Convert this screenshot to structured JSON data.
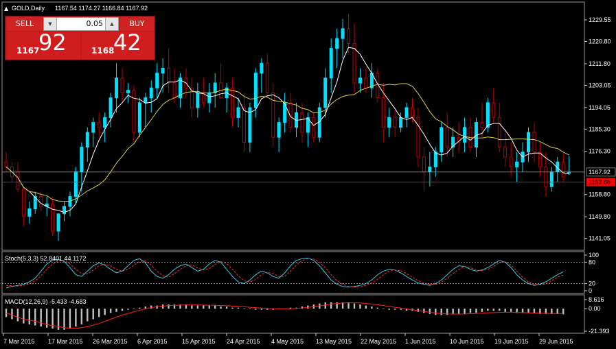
{
  "header": {
    "symbol": "GOLD,Daily",
    "ohlc": "1167.54 1174.27 1166.84 1167.92"
  },
  "trade_panel": {
    "sell_label": "SELL",
    "buy_label": "BUY",
    "lot": "0.05",
    "sell_price_small": "1167",
    "sell_price_big": "92",
    "buy_price_small": "1168",
    "buy_price_big": "42"
  },
  "colors": {
    "bull": "#00e0ff",
    "bear": "#c00000",
    "ma_fast": "#ffffff",
    "ma_slow": "#d8d048",
    "level": "#ff0000",
    "stoch_main": "#40c8e8",
    "stoch_signal": "#ff3030",
    "macd_hist": "#c0c0c0",
    "macd_signal": "#ff2020",
    "bid_line": "#a0a0a0"
  },
  "chart_data": [
    {
      "type": "candlestick",
      "panel": "price",
      "ylim": [
        1136.5,
        1236.5
      ],
      "y_ticks": [
        "1229.55",
        "1220.80",
        "1211.80",
        "1203.05",
        "1194.05",
        "1185.30",
        "1176.30",
        "1158.80",
        "1149.80",
        "1141.05"
      ],
      "x_ticks": [
        "7 Mar 2015",
        "17 Mar 2015",
        "26 Mar 2015",
        "6 Apr 2015",
        "15 Apr 2015",
        "24 Apr 2015",
        "4 May 2015",
        "13 May 2015",
        "22 May 2015",
        "1 Jun 2015",
        "10 Jun 2015",
        "19 Jun 2015",
        "29 Jun 2015"
      ],
      "current_price": "1167.92",
      "level_line": "1163.86",
      "ohlc": [
        [
          1172,
          1176,
          1168,
          1170
        ],
        [
          1170,
          1172,
          1164,
          1166
        ],
        [
          1168,
          1172,
          1160,
          1161
        ],
        [
          1161,
          1162,
          1146,
          1150
        ],
        [
          1150,
          1156,
          1147,
          1153
        ],
        [
          1153,
          1160,
          1151,
          1158
        ],
        [
          1158,
          1160,
          1152,
          1154
        ],
        [
          1154,
          1158,
          1150,
          1155
        ],
        [
          1155,
          1158,
          1142,
          1144
        ],
        [
          1144,
          1150,
          1140,
          1151
        ],
        [
          1151,
          1156,
          1148,
          1154
        ],
        [
          1154,
          1160,
          1150,
          1158
        ],
        [
          1158,
          1170,
          1155,
          1168
        ],
        [
          1168,
          1180,
          1160,
          1178
        ],
        [
          1178,
          1186,
          1172,
          1184
        ],
        [
          1184,
          1190,
          1178,
          1188
        ],
        [
          1188,
          1192,
          1182,
          1186
        ],
        [
          1186,
          1192,
          1180,
          1190
        ],
        [
          1190,
          1200,
          1186,
          1198
        ],
        [
          1198,
          1212,
          1192,
          1206
        ],
        [
          1206,
          1210,
          1196,
          1200
        ],
        [
          1200,
          1204,
          1196,
          1201
        ],
        [
          1201,
          1203,
          1180,
          1184
        ],
        [
          1184,
          1198,
          1182,
          1196
        ],
        [
          1196,
          1200,
          1186,
          1198
        ],
        [
          1198,
          1205,
          1192,
          1202
        ],
        [
          1202,
          1212,
          1198,
          1208
        ],
        [
          1208,
          1214,
          1200,
          1210
        ],
        [
          1210,
          1218,
          1200,
          1204
        ],
        [
          1204,
          1210,
          1196,
          1198
        ],
        [
          1198,
          1208,
          1194,
          1206
        ],
        [
          1206,
          1210,
          1198,
          1202
        ],
        [
          1202,
          1206,
          1190,
          1194
        ],
        [
          1194,
          1204,
          1190,
          1200
        ],
        [
          1200,
          1206,
          1194,
          1196
        ],
        [
          1196,
          1204,
          1192,
          1200
        ],
        [
          1200,
          1208,
          1194,
          1204
        ],
        [
          1204,
          1212,
          1198,
          1198
        ],
        [
          1198,
          1204,
          1192,
          1202
        ],
        [
          1202,
          1206,
          1186,
          1190
        ],
        [
          1190,
          1198,
          1186,
          1194
        ],
        [
          1194,
          1200,
          1176,
          1180
        ],
        [
          1180,
          1196,
          1176,
          1194
        ],
        [
          1194,
          1210,
          1190,
          1208
        ],
        [
          1208,
          1214,
          1200,
          1212
        ],
        [
          1212,
          1216,
          1198,
          1200
        ],
        [
          1200,
          1204,
          1178,
          1182
        ],
        [
          1182,
          1190,
          1176,
          1188
        ],
        [
          1188,
          1200,
          1184,
          1196
        ],
        [
          1196,
          1200,
          1184,
          1186
        ],
        [
          1186,
          1196,
          1182,
          1192
        ],
        [
          1192,
          1196,
          1180,
          1184
        ],
        [
          1184,
          1192,
          1178,
          1190
        ],
        [
          1190,
          1192,
          1180,
          1182
        ],
        [
          1182,
          1196,
          1180,
          1194
        ],
        [
          1194,
          1210,
          1190,
          1206
        ],
        [
          1206,
          1222,
          1200,
          1218
        ],
        [
          1218,
          1226,
          1210,
          1222
        ],
        [
          1222,
          1230,
          1214,
          1226
        ],
        [
          1226,
          1232,
          1216,
          1220
        ],
        [
          1220,
          1228,
          1200,
          1204
        ],
        [
          1204,
          1210,
          1200,
          1206
        ],
        [
          1206,
          1210,
          1200,
          1202
        ],
        [
          1202,
          1212,
          1198,
          1208
        ],
        [
          1208,
          1210,
          1196,
          1198
        ],
        [
          1198,
          1204,
          1180,
          1186
        ],
        [
          1186,
          1194,
          1182,
          1190
        ],
        [
          1190,
          1194,
          1182,
          1186
        ],
        [
          1186,
          1192,
          1184,
          1190
        ],
        [
          1190,
          1196,
          1186,
          1194
        ],
        [
          1194,
          1198,
          1188,
          1190
        ],
        [
          1190,
          1194,
          1170,
          1174
        ],
        [
          1174,
          1178,
          1160,
          1168
        ],
        [
          1168,
          1176,
          1162,
          1170
        ],
        [
          1170,
          1178,
          1166,
          1176
        ],
        [
          1176,
          1188,
          1172,
          1186
        ],
        [
          1186,
          1192,
          1174,
          1178
        ],
        [
          1178,
          1186,
          1174,
          1182
        ],
        [
          1182,
          1188,
          1176,
          1180
        ],
        [
          1180,
          1190,
          1176,
          1186
        ],
        [
          1186,
          1190,
          1176,
          1178
        ],
        [
          1178,
          1190,
          1174,
          1188
        ],
        [
          1188,
          1196,
          1182,
          1186
        ],
        [
          1186,
          1198,
          1184,
          1196
        ],
        [
          1196,
          1202,
          1188,
          1190
        ],
        [
          1190,
          1196,
          1176,
          1178
        ],
        [
          1178,
          1184,
          1170,
          1174
        ],
        [
          1174,
          1180,
          1166,
          1170
        ],
        [
          1170,
          1176,
          1164,
          1172
        ],
        [
          1172,
          1180,
          1168,
          1176
        ],
        [
          1176,
          1186,
          1172,
          1184
        ],
        [
          1184,
          1188,
          1172,
          1176
        ],
        [
          1176,
          1180,
          1166,
          1170
        ],
        [
          1170,
          1176,
          1158,
          1162
        ],
        [
          1162,
          1170,
          1160,
          1168
        ],
        [
          1168,
          1174,
          1164,
          1172
        ],
        [
          1172,
          1176,
          1164,
          1166
        ],
        [
          1167.54,
          1174.27,
          1166.84,
          1167.92
        ]
      ]
    },
    {
      "type": "line",
      "panel": "stochastic",
      "label": "Stoch(5,3,3) 52.8401 44.1172",
      "ylim": [
        0,
        100
      ],
      "y_ticks": [
        "100",
        "80",
        "20",
        "0"
      ],
      "levels": [
        80,
        20
      ],
      "main": [
        8,
        12,
        15,
        18,
        25,
        35,
        55,
        75,
        85,
        88,
        82,
        65,
        45,
        40,
        55,
        70,
        78,
        72,
        60,
        50,
        55,
        70,
        85,
        90,
        78,
        55,
        40,
        35,
        45,
        60,
        70,
        75,
        65,
        55,
        60,
        75,
        85,
        80,
        60,
        40,
        25,
        20,
        30,
        45,
        55,
        50,
        40,
        35,
        50,
        70,
        85,
        90,
        92,
        85,
        70,
        50,
        30,
        18,
        12,
        10,
        12,
        15,
        20,
        30,
        45,
        55,
        60,
        58,
        50,
        40,
        30,
        22,
        18,
        15,
        20,
        30,
        45,
        60,
        70,
        68,
        60,
        55,
        58,
        65,
        75,
        85,
        80,
        65,
        45,
        30,
        20,
        15,
        18,
        25,
        35,
        45,
        52.84
      ],
      "signal": [
        15,
        14,
        13,
        15,
        20,
        28,
        42,
        60,
        75,
        84,
        85,
        75,
        60,
        48,
        47,
        58,
        70,
        74,
        70,
        60,
        55,
        60,
        72,
        82,
        84,
        72,
        55,
        42,
        38,
        48,
        60,
        70,
        72,
        64,
        58,
        62,
        74,
        82,
        76,
        60,
        42,
        28,
        24,
        32,
        45,
        52,
        48,
        40,
        40,
        55,
        72,
        85,
        90,
        89,
        80,
        65,
        45,
        28,
        18,
        12,
        10,
        12,
        15,
        22,
        32,
        45,
        55,
        58,
        56,
        48,
        38,
        28,
        22,
        18,
        18,
        24,
        35,
        48,
        60,
        68,
        65,
        58,
        56,
        60,
        68,
        78,
        82,
        72,
        55,
        38,
        25,
        18,
        16,
        20,
        28,
        38,
        44.12
      ]
    },
    {
      "type": "bar+line",
      "panel": "macd",
      "label": "MACD(12,26,9) -5.433 -4.683",
      "ylim": [
        -21.393,
        8.616
      ],
      "y_ticks": [
        "8.616",
        "0.00",
        "-21.393"
      ],
      "histogram": [
        -8,
        -10,
        -12,
        -14,
        -15,
        -16,
        -17,
        -18,
        -19,
        -20,
        -20,
        -19,
        -17,
        -15,
        -12,
        -10,
        -8,
        -6,
        -4,
        -3,
        -2,
        -1,
        0,
        1,
        2,
        3,
        3,
        4,
        4,
        4,
        4,
        4,
        3,
        3,
        3,
        3,
        3,
        2,
        2,
        1,
        1,
        0,
        0,
        -1,
        -1,
        -1,
        -1,
        0,
        0,
        1,
        1,
        2,
        3,
        4,
        5,
        6,
        6,
        6,
        6,
        6,
        5,
        4,
        3,
        2,
        1,
        0,
        -1,
        -1,
        -1,
        -2,
        -2,
        -3,
        -4,
        -5,
        -6,
        -6,
        -6,
        -5,
        -5,
        -5,
        -4,
        -4,
        -3,
        -2,
        -2,
        -2,
        -3,
        -3,
        -4,
        -4,
        -4,
        -4,
        -5,
        -5,
        -5,
        -5,
        -5.433
      ],
      "signal": [
        -4,
        -6,
        -8,
        -10,
        -11,
        -12,
        -13.5,
        -15,
        -16,
        -17,
        -18,
        -18.5,
        -18.5,
        -18,
        -17,
        -15.5,
        -14,
        -12,
        -10,
        -8,
        -6,
        -4.5,
        -3,
        -1.5,
        0,
        1,
        2,
        2.5,
        3,
        3.2,
        3.4,
        3.6,
        3.6,
        3.5,
        3.4,
        3.3,
        3.2,
        3,
        2.8,
        2.5,
        2.2,
        1.8,
        1.4,
        1,
        0.6,
        0.2,
        0,
        -0.1,
        -0.1,
        0,
        0.3,
        0.7,
        1.2,
        2,
        2.8,
        3.6,
        4.4,
        5,
        5.4,
        5.6,
        5.6,
        5.4,
        5,
        4.4,
        3.7,
        3,
        2.2,
        1.4,
        0.6,
        -0.2,
        -1,
        -1.8,
        -2.6,
        -3.4,
        -4.1,
        -4.6,
        -5,
        -5.1,
        -5.1,
        -5,
        -4.8,
        -4.6,
        -4.3,
        -4,
        -3.7,
        -3.5,
        -3.4,
        -3.4,
        -3.5,
        -3.7,
        -3.9,
        -4.1,
        -4.3,
        -4.4,
        -4.5,
        -4.6,
        -4.683
      ]
    }
  ]
}
